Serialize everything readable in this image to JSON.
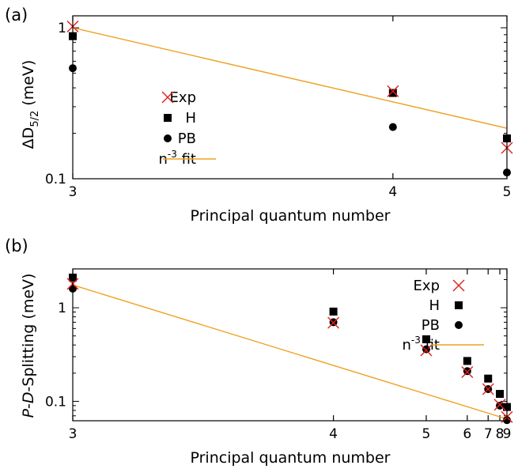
{
  "chart_data": [
    {
      "type": "scatter",
      "panel_label": "(a)",
      "xlabel": "Principal quantum number",
      "ylabel_parts": [
        "ΔD",
        "5/2",
        " (meV)"
      ],
      "xscale": "reciprocal-cube",
      "yscale": "log",
      "xlim": [
        3,
        5
      ],
      "ylim": [
        0.1,
        1.2
      ],
      "xticks": [
        3,
        4,
        5
      ],
      "yticks": [
        {
          "value": 0.1,
          "label": "0.1"
        },
        {
          "value": 1,
          "label": "1"
        }
      ],
      "legend": {
        "position": "middle-left",
        "entries": [
          {
            "label": "Exp",
            "marker": "cross"
          },
          {
            "label": "H",
            "marker": "square"
          },
          {
            "label": "PB",
            "marker": "circle"
          },
          {
            "label": "n⁻³ fit",
            "label_base": "n",
            "label_sup": "-3",
            "label_tail": " fit",
            "marker": "line"
          }
        ]
      },
      "series": [
        {
          "name": "Exp",
          "marker": "cross",
          "color": "#e0201c",
          "x": [
            3,
            4,
            5
          ],
          "y": [
            1.02,
            0.38,
            0.16
          ]
        },
        {
          "name": "H",
          "marker": "square",
          "color": "#000000",
          "x": [
            3,
            4,
            5
          ],
          "y": [
            0.88,
            0.37,
            0.185
          ]
        },
        {
          "name": "PB",
          "marker": "circle",
          "color": "#000000",
          "x": [
            3,
            4,
            5
          ],
          "y": [
            0.54,
            0.22,
            0.11
          ]
        },
        {
          "name": "n⁻³ fit",
          "marker": "line",
          "color": "#f0a020",
          "x": [
            3,
            5
          ],
          "y": [
            1.0,
            0.216
          ]
        }
      ]
    },
    {
      "type": "scatter",
      "panel_label": "(b)",
      "xlabel": "Principal quantum number",
      "ylabel_parts": [
        "P",
        "-",
        "D",
        "-Splitting (meV)"
      ],
      "xscale": "reciprocal-cube",
      "yscale": "log",
      "xlim": [
        3,
        9
      ],
      "ylim": [
        0.062,
        2.6
      ],
      "xticks": [
        3,
        4,
        5,
        6,
        7,
        8,
        9
      ],
      "yticks": [
        {
          "value": 0.1,
          "label": "0.1"
        },
        {
          "value": 1,
          "label": "1"
        }
      ],
      "legend": {
        "position": "top-right",
        "entries": [
          {
            "label": "Exp",
            "marker": "cross"
          },
          {
            "label": "H",
            "marker": "square"
          },
          {
            "label": "PB",
            "marker": "circle"
          },
          {
            "label": "n⁻³ fit",
            "label_base": "n",
            "label_sup": "-3",
            "label_tail": " fit",
            "marker": "line"
          }
        ]
      },
      "series": [
        {
          "name": "Exp",
          "marker": "cross",
          "color": "#e0201c",
          "x": [
            3,
            4,
            5,
            6,
            7,
            8,
            9
          ],
          "y": [
            1.8,
            0.69,
            0.35,
            0.205,
            0.135,
            0.092,
            0.068
          ]
        },
        {
          "name": "H",
          "marker": "square",
          "color": "#000000",
          "x": [
            3,
            4,
            5,
            6,
            7,
            8,
            9
          ],
          "y": [
            2.1,
            0.91,
            0.46,
            0.27,
            0.175,
            0.12,
            0.087
          ]
        },
        {
          "name": "PB",
          "marker": "circle",
          "color": "#000000",
          "x": [
            3,
            4,
            5,
            6,
            7,
            8,
            9
          ],
          "y": [
            1.6,
            0.7,
            0.36,
            0.21,
            0.135,
            0.09,
            0.063
          ]
        },
        {
          "name": "n⁻³ fit",
          "marker": "line",
          "color": "#f0a020",
          "x": [
            3,
            9
          ],
          "y": [
            1.75,
            0.0648
          ]
        }
      ]
    }
  ]
}
